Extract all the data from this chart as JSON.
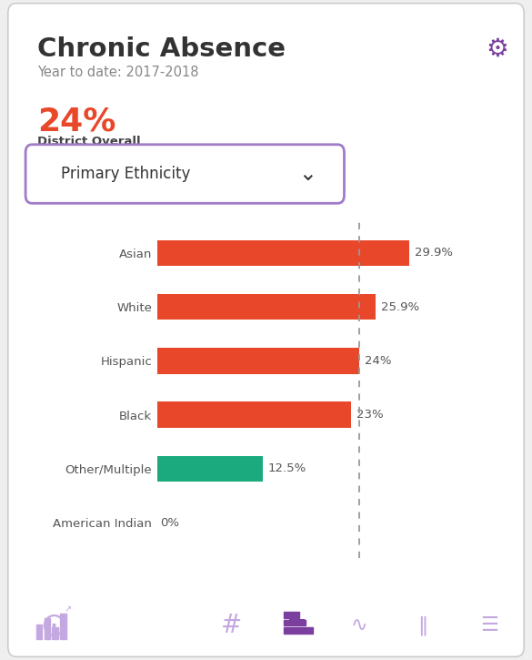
{
  "title": "Chronic Absence",
  "subtitle": "Year to date: 2017-2018",
  "overall_pct": "24%",
  "overall_label": "District Overall",
  "dropdown_label": "Primary Ethnicity",
  "categories": [
    "Asian",
    "White",
    "Hispanic",
    "Black",
    "Other/Multiple",
    "American Indian"
  ],
  "values": [
    29.9,
    25.9,
    24.0,
    23.0,
    12.5,
    0.0
  ],
  "labels": [
    "29.9%",
    "25.9%",
    "24%",
    "23%",
    "12.5%",
    "0%"
  ],
  "bar_colors": [
    "#e8472a",
    "#e8472a",
    "#e8472a",
    "#e8472a",
    "#1aaa7e",
    "#cccccc"
  ],
  "dashed_line_x": 24.0,
  "bg_color": "#efefef",
  "card_color": "#ffffff",
  "title_color": "#333333",
  "subtitle_color": "#888888",
  "overall_pct_color": "#e8472a",
  "overall_label_color": "#444444",
  "label_color": "#555555",
  "value_label_color": "#555555",
  "gear_color": "#7b3fa0",
  "dropdown_border_color": "#a07bc8",
  "icon_color": "#c4a8e0",
  "active_icon_color": "#7b3fa0"
}
